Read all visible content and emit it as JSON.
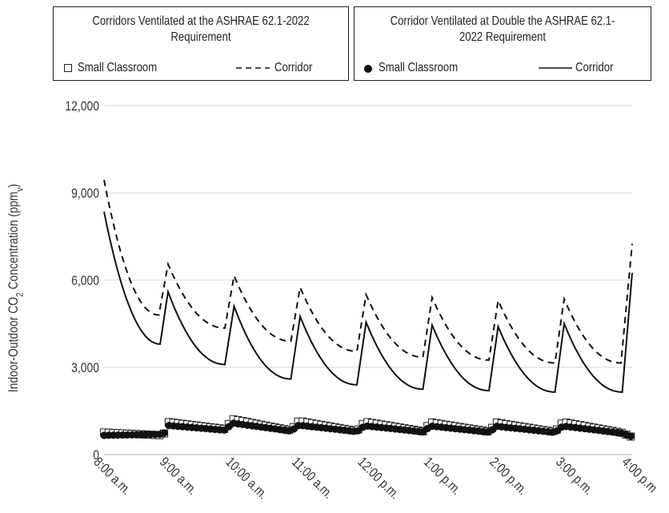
{
  "chart_data": {
    "type": "line",
    "xlabel": "",
    "ylabel": "Indoor-Outdoor CO",
    "ylabel_sub": "2",
    "ylabel_rest": " Concentration (ppm",
    "ylabel_unit_sub": "v",
    "ylabel_close": ")",
    "ylim": [
      0,
      12000
    ],
    "yticks": [
      0,
      3000,
      6000,
      9000,
      12000
    ],
    "ytick_labels": [
      "0",
      "3,000",
      "6,000",
      "9,000",
      "12,000"
    ],
    "xlim": [
      8,
      16
    ],
    "xticks": [
      8,
      9,
      10,
      11,
      12,
      13,
      14,
      15,
      16
    ],
    "xtick_labels": [
      "8:00 a.m.",
      "9:00 a.m.",
      "10:00 a.m.",
      "11:00 a.m.",
      "12:00 p.m.",
      "1:00 p.m.",
      "2:00 p.m.",
      "3:00 p.m.",
      "4:00 p.m"
    ],
    "grid": "horizontal",
    "legend_groups": [
      {
        "title": "Corridors Ventilated at the ASHRAE 62.1-2022 Requirement",
        "entries": [
          {
            "label": "Small Classroom",
            "marker": "open-square"
          },
          {
            "label": "Corridor",
            "line": "dashed"
          }
        ]
      },
      {
        "title": "Corridor Ventilated at Double the ASHRAE 62.1-2022 Requirement",
        "entries": [
          {
            "label": "Small Classroom",
            "marker": "filled-circle"
          },
          {
            "label": "Corridor",
            "line": "solid"
          }
        ]
      }
    ],
    "series": [
      {
        "name": "Corridor",
        "group": "ASHRAE 62.1-2022 Requirement",
        "style": "dashed",
        "x": [
          8.0,
          8.83,
          8.97,
          9.83,
          9.97,
          10.83,
          10.97,
          11.83,
          11.97,
          12.83,
          12.97,
          13.83,
          13.97,
          14.83,
          14.97,
          15.83,
          16.0
        ],
        "y": [
          9450,
          4800,
          6550,
          4350,
          6150,
          3900,
          5750,
          3550,
          5500,
          3350,
          5400,
          3250,
          5300,
          3150,
          5350,
          3150,
          7250
        ]
      },
      {
        "name": "Corridor",
        "group": "Double the ASHRAE 62.1-2022 Requirement",
        "style": "solid",
        "x": [
          8.0,
          8.85,
          8.97,
          9.83,
          9.97,
          10.83,
          10.97,
          11.83,
          11.97,
          12.83,
          12.97,
          13.83,
          13.97,
          14.83,
          14.97,
          15.85,
          16.0
        ],
        "y": [
          8350,
          3800,
          5600,
          3100,
          5100,
          2600,
          4750,
          2400,
          4550,
          2250,
          4450,
          2200,
          4400,
          2150,
          4500,
          2150,
          6250
        ]
      },
      {
        "name": "Small Classroom",
        "group": "ASHRAE 62.1-2022 Requirement",
        "marker": "open-square",
        "x": [
          8.0,
          8.9,
          8.97,
          9.83,
          9.95,
          10.83,
          10.95,
          11.83,
          11.95,
          12.83,
          12.95,
          13.83,
          13.95,
          14.83,
          14.95,
          15.83,
          16.0
        ],
        "y": [
          760,
          660,
          1120,
          880,
          1220,
          830,
          1160,
          810,
          1130,
          800,
          1110,
          790,
          1100,
          780,
          1120,
          760,
          600
        ]
      },
      {
        "name": "Small Classroom",
        "group": "Double the ASHRAE 62.1-2022 Requirement",
        "marker": "filled-circle",
        "x": [
          8.0,
          8.9,
          8.97,
          9.83,
          9.95,
          10.83,
          10.95,
          11.83,
          11.95,
          12.83,
          12.95,
          13.83,
          13.95,
          14.83,
          14.95,
          15.83,
          16.0
        ],
        "y": [
          660,
          700,
          1000,
          840,
          1080,
          810,
          1010,
          790,
          990,
          780,
          980,
          770,
          970,
          760,
          980,
          740,
          620
        ]
      }
    ]
  }
}
